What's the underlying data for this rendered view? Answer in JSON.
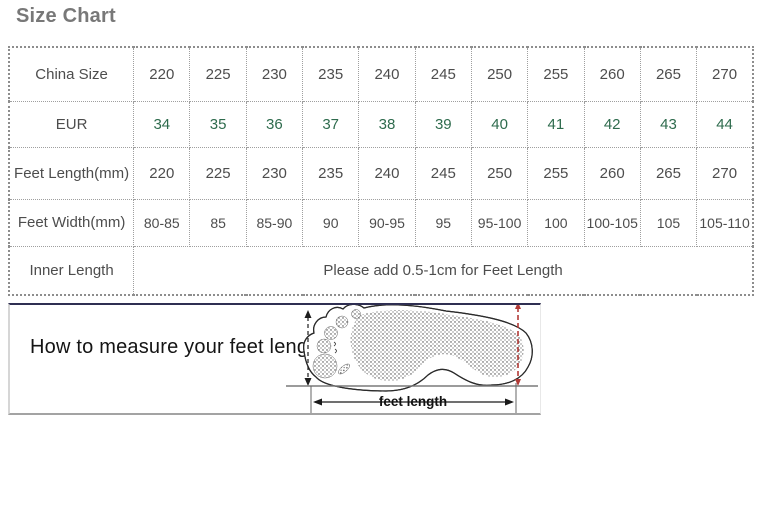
{
  "page": {
    "title": "Size Chart"
  },
  "size_table": {
    "rows": [
      {
        "label": "China Size",
        "type": "plain",
        "values": [
          "220",
          "225",
          "230",
          "235",
          "240",
          "245",
          "250",
          "255",
          "260",
          "265",
          "270"
        ]
      },
      {
        "label": "EUR",
        "type": "green",
        "values": [
          "34",
          "35",
          "36",
          "37",
          "38",
          "39",
          "40",
          "41",
          "42",
          "43",
          "44"
        ]
      },
      {
        "label": "Feet Length(mm)",
        "type": "plain",
        "values": [
          "220",
          "225",
          "230",
          "235",
          "240",
          "245",
          "250",
          "255",
          "260",
          "265",
          "270"
        ]
      },
      {
        "label": "Feet Width(mm)",
        "type": "small",
        "values": [
          "80-85",
          "85",
          "85-90",
          "90",
          "90-95",
          "95",
          "95-100",
          "100",
          "100-105",
          "105",
          "105-110"
        ]
      },
      {
        "label": "Inner Length",
        "type": "span",
        "span_text": "Please add 0.5-1cm for Feet Length"
      }
    ]
  },
  "figure": {
    "caption": "How to measure your feet length",
    "arrow_label": "feet length"
  },
  "colors": {
    "title_gray": "#787878",
    "table_text": "#4d4d4d",
    "eur_green": "#2e6b4d",
    "red_dashed_line": "#b23a36",
    "figure_top_border": "#2f2f52"
  }
}
